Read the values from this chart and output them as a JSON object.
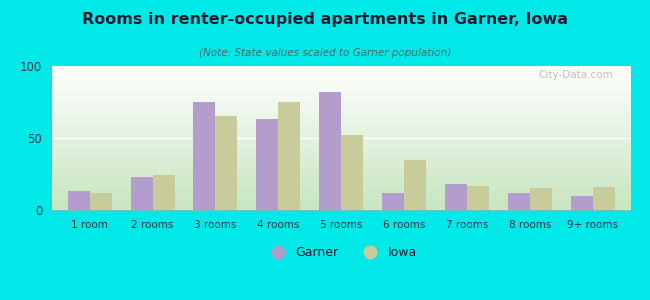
{
  "title": "Rooms in renter-occupied apartments in Garner, Iowa",
  "subtitle": "(Note: State values scaled to Garner population)",
  "categories": [
    "1 room",
    "2 rooms",
    "3 rooms",
    "4 rooms",
    "5 rooms",
    "6 rooms",
    "7 rooms",
    "8 rooms",
    "9+ rooms"
  ],
  "garner_values": [
    13,
    23,
    75,
    63,
    82,
    12,
    18,
    12,
    10
  ],
  "iowa_values": [
    12,
    24,
    65,
    75,
    52,
    35,
    17,
    15,
    16
  ],
  "garner_color": "#b39dcc",
  "iowa_color": "#c8cc9a",
  "background_outer": "#00e8e8",
  "ylim": [
    0,
    100
  ],
  "yticks": [
    0,
    50,
    100
  ],
  "bar_width": 0.35,
  "legend_garner": "Garner",
  "legend_iowa": "Iowa",
  "watermark": "City-Data.com",
  "title_color": "#1a1a2e",
  "subtitle_color": "#4a6a6a",
  "tick_color": "#333344"
}
